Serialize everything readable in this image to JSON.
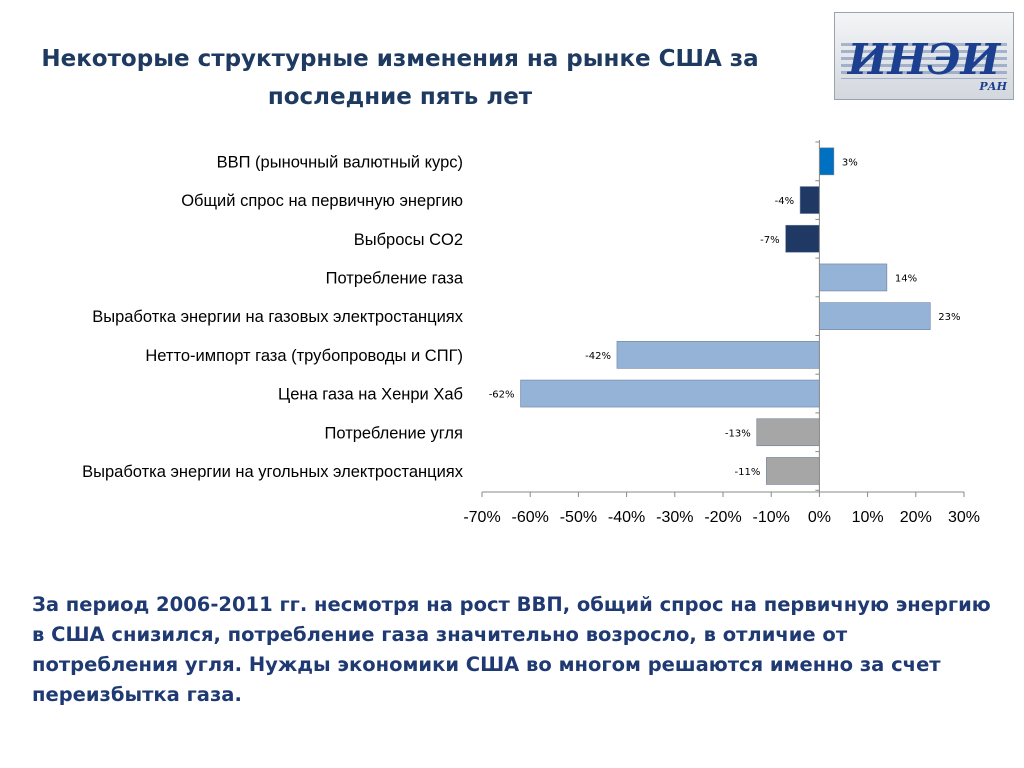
{
  "title": "Некоторые структурные изменения на рынке США за последние пять лет",
  "logo": {
    "main": "ИНЭИ",
    "sub": "РАН"
  },
  "chart_data": {
    "type": "bar",
    "orientation": "horizontal",
    "categories": [
      "ВВП (рыночный валютный курс)",
      "Общий спрос на первичную энергию",
      "Выбросы CO2",
      "Потребление газа",
      "Выработка энергии на газовых электростанциях",
      "Нетто-импорт газа (трубопроводы и СПГ)",
      "Цена газа на Хенри Хаб",
      "Потребление угля",
      "Выработка энергии на угольных электростанциях"
    ],
    "values": [
      3,
      -4,
      -7,
      14,
      23,
      -42,
      -62,
      -13,
      -11
    ],
    "value_labels": [
      "3%",
      "-4%",
      "-7%",
      "14%",
      "23%",
      "-42%",
      "-62%",
      "-13%",
      "-11%"
    ],
    "colors": [
      "#0070c0",
      "#1f3864",
      "#1f3864",
      "#95b3d7",
      "#95b3d7",
      "#95b3d7",
      "#95b3d7",
      "#a6a6a6",
      "#a6a6a6"
    ],
    "xlim": [
      -70,
      30
    ],
    "x_ticks": [
      -70,
      -60,
      -50,
      -40,
      -30,
      -20,
      -10,
      0,
      10,
      20,
      30
    ],
    "x_tick_labels": [
      "-70%",
      "-60%",
      "-50%",
      "-40%",
      "-30%",
      "-20%",
      "-10%",
      "0%",
      "10%",
      "20%",
      "30%"
    ],
    "grid": false,
    "legend": "none"
  },
  "caption": "За период 2006-2011 гг. несмотря на рост ВВП, общий спрос на первичную энергию в США снизился, потребление газа значительно возросло, в отличие от потребления угля. Нужды экономики США во многом решаются именно за счет переизбытка газа."
}
